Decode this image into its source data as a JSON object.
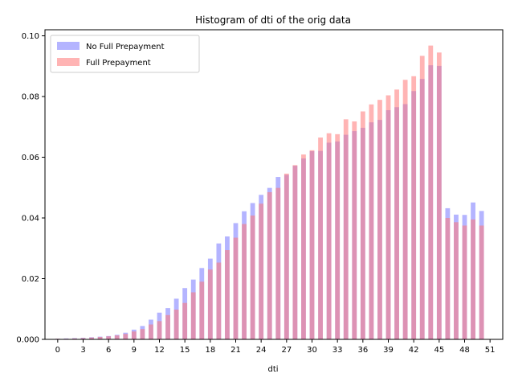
{
  "chart_data": {
    "type": "bar",
    "title": "Histogram of dti of the orig data",
    "xlabel": "dti",
    "ylabel": "",
    "xlim": [
      -1.5,
      52.5
    ],
    "ylim": [
      0,
      0.102
    ],
    "xticks": [
      "0",
      "3",
      "6",
      "9",
      "12",
      "15",
      "18",
      "21",
      "24",
      "27",
      "30",
      "33",
      "36",
      "39",
      "42",
      "45",
      "48",
      "51"
    ],
    "yticks": [
      "0.000",
      "0.02",
      "0.04",
      "0.06",
      "0.08",
      "0.10"
    ],
    "grid": false,
    "legend_position": "top-left",
    "series": [
      {
        "name": "No Full Prepayment",
        "color": "#7777ff",
        "x": [
          0,
          1,
          2,
          3,
          4,
          5,
          6,
          7,
          8,
          9,
          10,
          11,
          12,
          13,
          14,
          15,
          16,
          17,
          18,
          19,
          20,
          21,
          22,
          23,
          24,
          25,
          26,
          27,
          28,
          29,
          30,
          31,
          32,
          33,
          34,
          35,
          36,
          37,
          38,
          39,
          40,
          41,
          42,
          43,
          44,
          45,
          46,
          47,
          48,
          49,
          50
        ],
        "values": [
          0.0002,
          0.0003,
          0.0004,
          0.0005,
          0.0007,
          0.0009,
          0.0011,
          0.0015,
          0.0022,
          0.0032,
          0.0044,
          0.0065,
          0.0088,
          0.0103,
          0.0134,
          0.0169,
          0.0197,
          0.0235,
          0.0266,
          0.0316,
          0.0339,
          0.0383,
          0.0422,
          0.0449,
          0.0476,
          0.0499,
          0.0535,
          0.0542,
          0.0572,
          0.0596,
          0.062,
          0.0621,
          0.0648,
          0.0652,
          0.0674,
          0.0686,
          0.0697,
          0.0715,
          0.0723,
          0.0755,
          0.0765,
          0.0775,
          0.0818,
          0.0858,
          0.0903,
          0.0901,
          0.0432,
          0.0411,
          0.041,
          0.0451,
          0.0423
        ]
      },
      {
        "name": "Full Prepayment",
        "color": "#ff7777",
        "x": [
          0,
          1,
          2,
          3,
          4,
          5,
          6,
          7,
          8,
          9,
          10,
          11,
          12,
          13,
          14,
          15,
          16,
          17,
          18,
          19,
          20,
          21,
          22,
          23,
          24,
          25,
          26,
          27,
          28,
          29,
          30,
          31,
          32,
          33,
          34,
          35,
          36,
          37,
          38,
          39,
          40,
          41,
          42,
          43,
          44,
          45,
          46,
          47,
          48,
          49,
          50
        ],
        "values": [
          0.0002,
          0.0002,
          0.0003,
          0.0004,
          0.0006,
          0.0008,
          0.001,
          0.0013,
          0.0018,
          0.0026,
          0.0034,
          0.0049,
          0.006,
          0.008,
          0.0098,
          0.012,
          0.0155,
          0.019,
          0.023,
          0.0253,
          0.0294,
          0.0335,
          0.038,
          0.0408,
          0.0447,
          0.0485,
          0.0499,
          0.0546,
          0.0574,
          0.0609,
          0.0623,
          0.0665,
          0.0679,
          0.0676,
          0.0725,
          0.0718,
          0.0751,
          0.0774,
          0.0789,
          0.0804,
          0.0823,
          0.0855,
          0.0867,
          0.0934,
          0.0968,
          0.0945,
          0.04,
          0.0386,
          0.0375,
          0.0395,
          0.0375
        ]
      }
    ]
  }
}
